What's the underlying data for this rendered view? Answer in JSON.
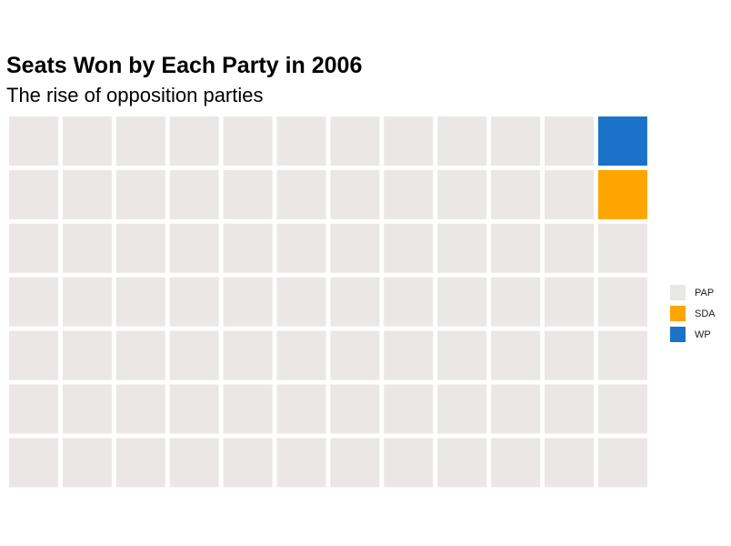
{
  "chart_data": {
    "type": "waffle",
    "title": "Seats Won by Each Party in 2006",
    "subtitle": "The rise of opposition parties",
    "grid": {
      "rows": 7,
      "columns": 12,
      "fill_order": "column-major from top-right"
    },
    "series": [
      {
        "name": "PAP",
        "value": 82,
        "color": "#ebe7e6"
      },
      {
        "name": "SDA",
        "value": 1,
        "color": "#ffa500"
      },
      {
        "name": "WP",
        "value": 1,
        "color": "#1a73c9"
      }
    ],
    "legend_position": "right"
  }
}
